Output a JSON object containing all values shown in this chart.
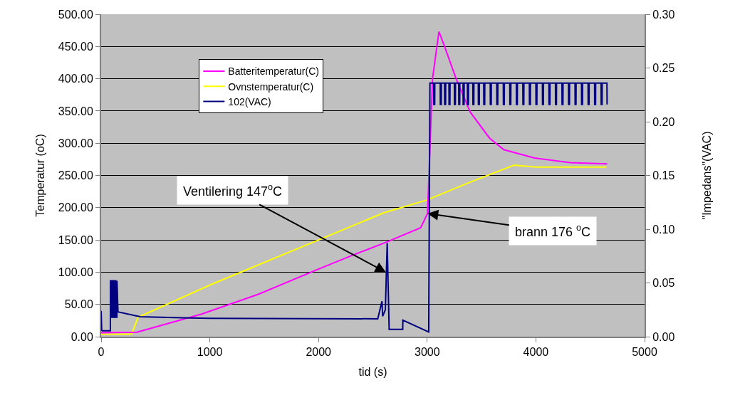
{
  "chart_data": {
    "type": "line",
    "xlabel": "tid (s)",
    "ylabel": "Temperatur (oC)",
    "y2label": "\"Impedans\"(VAC)",
    "xlim": [
      0,
      5000
    ],
    "xticks": [
      0,
      1000,
      2000,
      3000,
      4000,
      5000
    ],
    "ylim": [
      0,
      500
    ],
    "yticks": [
      {
        "value": 0,
        "label": "0.00"
      },
      {
        "value": 50,
        "label": "50.00"
      },
      {
        "value": 100,
        "label": "100.00"
      },
      {
        "value": 150,
        "label": "150.00"
      },
      {
        "value": 200,
        "label": "200.00"
      },
      {
        "value": 250,
        "label": "250.00"
      },
      {
        "value": 300,
        "label": "300.00"
      },
      {
        "value": 350,
        "label": "350.00"
      },
      {
        "value": 400,
        "label": "400.00"
      },
      {
        "value": 450,
        "label": "450.00"
      },
      {
        "value": 500,
        "label": "500.00"
      }
    ],
    "y2lim": [
      0,
      0.3
    ],
    "y2ticks": [
      {
        "value": 0,
        "label": "0.00"
      },
      {
        "value": 0.05,
        "label": "0.05"
      },
      {
        "value": 0.1,
        "label": "0.10"
      },
      {
        "value": 0.15,
        "label": "0.15"
      },
      {
        "value": 0.2,
        "label": "0.20"
      },
      {
        "value": 0.25,
        "label": "0.25"
      },
      {
        "value": 0.3,
        "label": "0.30"
      }
    ],
    "grid": "y",
    "legend": "top left",
    "marker": "none",
    "line_style": "solid",
    "series": [
      {
        "name": "Batteritemperatur(C)",
        "color": "#ff00ff",
        "x": [
          0,
          330,
          925,
          1450,
          1975,
          2325,
          2630,
          2940,
          3003,
          3049,
          3108,
          3160,
          3266,
          3397,
          3573,
          3705,
          3987,
          4315,
          4656
        ],
        "values": [
          6,
          7,
          35,
          66,
          103,
          127,
          147,
          169,
          191,
          400,
          473,
          450,
          400,
          348,
          308,
          290,
          277,
          270,
          268
        ]
      },
      {
        "name": "Ovnstemperatur(C)",
        "color": "#ffff00",
        "x": [
          0,
          280,
          340,
          1000,
          2000,
          2600,
          3000,
          3400,
          3800,
          4000,
          4650
        ],
        "values": [
          4,
          4,
          30,
          80,
          150,
          192,
          212,
          240,
          266,
          263,
          263
        ]
      },
      {
        "name": "102(VAC)",
        "color": "#000080",
        "axis": "y2",
        "x": [
          0,
          5,
          10,
          85,
          86,
          95,
          96,
          105,
          106,
          115,
          116,
          125,
          126,
          135,
          136,
          145,
          146,
          155,
          360,
          1000,
          2545,
          2584,
          2590,
          2615,
          2632,
          2650,
          2775,
          2776,
          3014,
          3025,
          3060,
          3061,
          3069,
          3070,
          3120,
          3121,
          3129,
          3130,
          3160,
          3161,
          3169,
          3170,
          3200,
          3201,
          3209,
          3210,
          3250,
          3251,
          3259,
          3260,
          3290,
          3291,
          3299,
          3300,
          3330,
          3331,
          3339,
          3340,
          3370,
          3371,
          3379,
          3380,
          3420,
          3421,
          3429,
          3430,
          3470,
          3471,
          3479,
          3480,
          3520,
          3521,
          3529,
          3530,
          3580,
          3581,
          3589,
          3590,
          3640,
          3641,
          3649,
          3650,
          3700,
          3701,
          3709,
          3710,
          3760,
          3761,
          3769,
          3770,
          3820,
          3821,
          3829,
          3830,
          3880,
          3881,
          3889,
          3890,
          3940,
          3941,
          3949,
          3950,
          4000,
          4001,
          4009,
          4010,
          4060,
          4061,
          4069,
          4070,
          4120,
          4121,
          4129,
          4130,
          4180,
          4181,
          4189,
          4190,
          4240,
          4241,
          4249,
          4250,
          4300,
          4301,
          4309,
          4310,
          4360,
          4361,
          4369,
          4370,
          4420,
          4421,
          4429,
          4430,
          4480,
          4481,
          4489,
          4490,
          4540,
          4541,
          4549,
          4550,
          4600,
          4601,
          4609,
          4610,
          4654,
          4655
        ],
        "values": [
          0.024,
          0.006,
          0.0055,
          0.0055,
          0.052,
          0.052,
          0.018,
          0.018,
          0.052,
          0.052,
          0.018,
          0.018,
          0.052,
          0.052,
          0.018,
          0.018,
          0.052,
          0.023,
          0.0185,
          0.017,
          0.0166,
          0.033,
          0.019,
          0.025,
          0.087,
          0.0068,
          0.0068,
          0.0154,
          0.0044,
          0.236,
          0.236,
          0.216,
          0.216,
          0.236,
          0.236,
          0.216,
          0.216,
          0.236,
          0.236,
          0.216,
          0.216,
          0.236,
          0.236,
          0.216,
          0.216,
          0.236,
          0.236,
          0.216,
          0.216,
          0.236,
          0.236,
          0.216,
          0.216,
          0.236,
          0.236,
          0.216,
          0.216,
          0.236,
          0.236,
          0.216,
          0.216,
          0.236,
          0.236,
          0.216,
          0.216,
          0.236,
          0.236,
          0.216,
          0.216,
          0.236,
          0.236,
          0.216,
          0.216,
          0.236,
          0.236,
          0.216,
          0.216,
          0.236,
          0.236,
          0.216,
          0.216,
          0.236,
          0.236,
          0.216,
          0.216,
          0.236,
          0.236,
          0.216,
          0.216,
          0.236,
          0.236,
          0.216,
          0.216,
          0.236,
          0.236,
          0.216,
          0.216,
          0.236,
          0.236,
          0.216,
          0.216,
          0.236,
          0.236,
          0.216,
          0.216,
          0.236,
          0.236,
          0.216,
          0.216,
          0.236,
          0.236,
          0.216,
          0.216,
          0.236,
          0.236,
          0.216,
          0.216,
          0.236,
          0.236,
          0.216,
          0.216,
          0.236,
          0.236,
          0.216,
          0.216,
          0.236,
          0.236,
          0.216,
          0.216,
          0.236,
          0.236,
          0.216,
          0.216,
          0.236,
          0.236,
          0.216,
          0.216,
          0.236,
          0.236,
          0.216,
          0.216,
          0.236,
          0.236,
          0.216,
          0.216,
          0.236,
          0.236,
          0.216
        ]
      }
    ],
    "annotations": [
      {
        "text": "Ventilering 147$^{o}$C",
        "x": 2620,
        "y": 100
      },
      {
        "text": "brann 176 $^{o}$C",
        "x": 3003,
        "y": 191
      }
    ]
  }
}
